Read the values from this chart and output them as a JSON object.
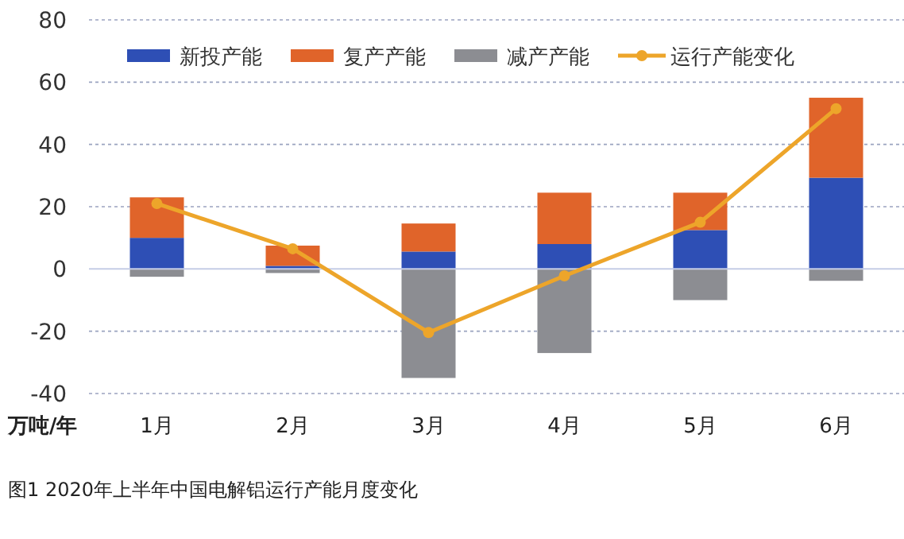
{
  "chart_data": {
    "type": "bar",
    "title": "图1  2020年上半年中国电解铝运行产能月度变化",
    "ylabel": "万吨/年",
    "categories": [
      "1月",
      "2月",
      "3月",
      "4月",
      "5月",
      "6月"
    ],
    "stacked": true,
    "series": [
      {
        "name": "新投产能",
        "color": "#2e4fb5",
        "values": [
          10,
          1,
          5.6,
          8,
          12.5,
          29.3
        ]
      },
      {
        "name": "复产产能",
        "color": "#e0642a",
        "values": [
          13,
          6.5,
          9,
          16.5,
          12,
          25.7
        ]
      },
      {
        "name": "减产产能",
        "color": "#8c8d92",
        "values": [
          -2.5,
          -1.3,
          -35,
          -27,
          -10,
          -3.8
        ]
      },
      {
        "name": "运行产能变化",
        "type": "line",
        "color": "#eda52a",
        "values": [
          21,
          6.5,
          -20.4,
          -2.2,
          15,
          51.5
        ]
      }
    ],
    "ylim": [
      -40,
      80
    ],
    "yticks": [
      -40,
      -20,
      0,
      20,
      40,
      60,
      80
    ],
    "grid": "y",
    "legend": "top",
    "marker": "circle"
  }
}
